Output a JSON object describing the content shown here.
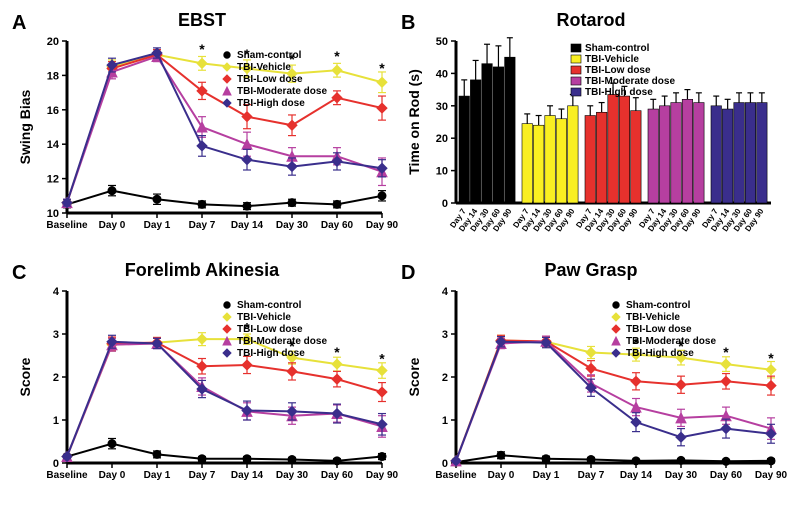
{
  "panels": {
    "A": {
      "label": "A",
      "title": "EBST",
      "ylabel": "Swing Bias",
      "type": "line"
    },
    "B": {
      "label": "B",
      "title": "Rotarod",
      "ylabel": "Time on  Rod (s)",
      "type": "bar"
    },
    "C": {
      "label": "C",
      "title": "Forelimb Akinesia",
      "ylabel": "Score",
      "type": "line"
    },
    "D": {
      "label": "D",
      "title": "Paw Grasp",
      "ylabel": "Score",
      "type": "line"
    }
  },
  "x_categories": [
    "Baseline",
    "Day 0",
    "Day 1",
    "Day 7",
    "Day 14",
    "Day 30",
    "Day 60",
    "Day 90"
  ],
  "rotarod_x": [
    "Day 7",
    "Day 14",
    "Day 30",
    "Day 60",
    "Day 90"
  ],
  "groups": [
    {
      "key": "sham",
      "label": "Sham-control",
      "color": "#000000",
      "marker": "circle"
    },
    {
      "key": "veh",
      "label": "TBI-Vehicle",
      "color": "#e7e13a",
      "marker": "diamond"
    },
    {
      "key": "low",
      "label": "TBI-Low dose",
      "color": "#e6312d",
      "marker": "diamond"
    },
    {
      "key": "mod",
      "label": "TBI-Moderate dose",
      "color": "#b63fa0",
      "marker": "triangle"
    },
    {
      "key": "high",
      "label": "TBI-High dose",
      "color": "#3a2e8c",
      "marker": "diamond"
    }
  ],
  "line_axes": {
    "A": {
      "ymin": 10,
      "ymax": 20,
      "ystep": 2
    },
    "C": {
      "ymin": 0,
      "ymax": 4,
      "ystep": 1
    },
    "D": {
      "ymin": 0,
      "ymax": 4,
      "ystep": 1
    }
  },
  "bar_axis": {
    "ymin": 0,
    "ymax": 50,
    "ystep": 10
  },
  "data": {
    "A": {
      "sham": [
        10.5,
        11.3,
        10.8,
        10.5,
        10.4,
        10.6,
        10.5,
        11.0
      ],
      "veh": [
        10.6,
        18.5,
        19.2,
        18.7,
        18.4,
        18.1,
        18.3,
        17.6
      ],
      "low": [
        10.6,
        18.4,
        19.2,
        17.1,
        15.6,
        15.1,
        16.7,
        16.1
      ],
      "mod": [
        10.6,
        18.2,
        19.1,
        15.0,
        14.0,
        13.3,
        13.3,
        12.4
      ],
      "high": [
        10.6,
        18.6,
        19.3,
        13.9,
        13.1,
        12.7,
        13.0,
        12.6
      ]
    },
    "C": {
      "sham": [
        0.15,
        0.45,
        0.2,
        0.1,
        0.1,
        0.08,
        0.05,
        0.15
      ],
      "veh": [
        0.15,
        2.75,
        2.8,
        2.88,
        2.88,
        2.45,
        2.3,
        2.15
      ],
      "low": [
        0.15,
        2.78,
        2.8,
        2.25,
        2.28,
        2.13,
        1.95,
        1.65
      ],
      "mod": [
        0.15,
        2.75,
        2.78,
        1.78,
        1.2,
        1.1,
        1.15,
        0.85
      ],
      "high": [
        0.15,
        2.82,
        2.78,
        1.72,
        1.22,
        1.2,
        1.15,
        0.9
      ]
    },
    "D": {
      "sham": [
        0.02,
        0.18,
        0.1,
        0.08,
        0.05,
        0.06,
        0.04,
        0.05
      ],
      "veh": [
        0.05,
        2.85,
        2.82,
        2.57,
        2.52,
        2.45,
        2.3,
        2.17
      ],
      "low": [
        0.05,
        2.85,
        2.83,
        2.2,
        1.9,
        1.82,
        1.9,
        1.8
      ],
      "mod": [
        0.05,
        2.78,
        2.83,
        1.85,
        1.3,
        1.05,
        1.1,
        0.8
      ],
      "high": [
        0.05,
        2.82,
        2.8,
        1.75,
        0.95,
        0.6,
        0.8,
        0.68
      ]
    }
  },
  "err": {
    "A": {
      "sham": [
        0.2,
        0.3,
        0.3,
        0.2,
        0.2,
        0.2,
        0.2,
        0.3
      ],
      "veh": [
        0.2,
        0.4,
        0.3,
        0.4,
        0.5,
        0.5,
        0.4,
        0.6
      ],
      "low": [
        0.2,
        0.4,
        0.3,
        0.5,
        0.7,
        0.6,
        0.4,
        0.7
      ],
      "mod": [
        0.2,
        0.4,
        0.3,
        0.6,
        0.7,
        0.5,
        0.5,
        0.8
      ],
      "high": [
        0.2,
        0.4,
        0.3,
        0.6,
        0.6,
        0.5,
        0.5,
        0.5
      ]
    },
    "C": {
      "sham": [
        0.05,
        0.12,
        0.08,
        0.05,
        0.05,
        0.05,
        0.05,
        0.07
      ],
      "veh": [
        0.05,
        0.15,
        0.12,
        0.15,
        0.12,
        0.15,
        0.16,
        0.18
      ],
      "low": [
        0.05,
        0.15,
        0.12,
        0.18,
        0.2,
        0.2,
        0.18,
        0.22
      ],
      "mod": [
        0.05,
        0.15,
        0.12,
        0.2,
        0.2,
        0.2,
        0.2,
        0.25
      ],
      "high": [
        0.05,
        0.15,
        0.12,
        0.2,
        0.22,
        0.2,
        0.22,
        0.25
      ]
    },
    "D": {
      "sham": [
        0.03,
        0.08,
        0.06,
        0.05,
        0.04,
        0.04,
        0.03,
        0.05
      ],
      "veh": [
        0.04,
        0.12,
        0.12,
        0.14,
        0.15,
        0.17,
        0.17,
        0.19
      ],
      "low": [
        0.04,
        0.12,
        0.12,
        0.18,
        0.2,
        0.2,
        0.18,
        0.22
      ],
      "mod": [
        0.04,
        0.12,
        0.12,
        0.2,
        0.2,
        0.2,
        0.2,
        0.25
      ],
      "high": [
        0.04,
        0.12,
        0.12,
        0.2,
        0.22,
        0.2,
        0.22,
        0.22
      ]
    }
  },
  "sig": {
    "A": [
      null,
      null,
      null,
      18.9,
      18.6,
      18.3,
      18.5,
      17.8
    ],
    "C": [
      null,
      null,
      null,
      null,
      2.9,
      2.47,
      2.32,
      2.17
    ],
    "D": [
      null,
      null,
      null,
      null,
      2.54,
      2.47,
      2.32,
      2.19
    ]
  },
  "rotarod_data": {
    "sham": [
      33,
      38,
      43,
      42,
      45
    ],
    "veh": [
      24.5,
      24,
      27,
      26,
      30
    ],
    "low": [
      27,
      28,
      33.5,
      33,
      28.5
    ],
    "mod": [
      29,
      30,
      31,
      32,
      31
    ],
    "high": [
      30,
      29,
      31,
      31,
      31
    ]
  },
  "rotarod_err": {
    "sham": [
      5,
      6,
      6,
      6.5,
      6
    ],
    "veh": [
      3,
      3,
      3,
      3,
      3.5
    ],
    "low": [
      3,
      3,
      3.5,
      3,
      4
    ],
    "mod": [
      3,
      3,
      3,
      3,
      3
    ],
    "high": [
      3,
      3,
      3,
      3,
      3
    ]
  },
  "rotarod_colors": {
    "sham": "#000000",
    "veh": "#f9ef22",
    "low": "#e6312d",
    "mod": "#b63fa0",
    "high": "#3a2e8c"
  },
  "style": {
    "axis_stroke": "#000000",
    "axis_width": 3,
    "tick_len": 5,
    "line_width": 2,
    "marker_size": 5,
    "err_cap": 4,
    "bg": "#ffffff",
    "sig_mark": "*",
    "sig_fontsize": 14
  }
}
